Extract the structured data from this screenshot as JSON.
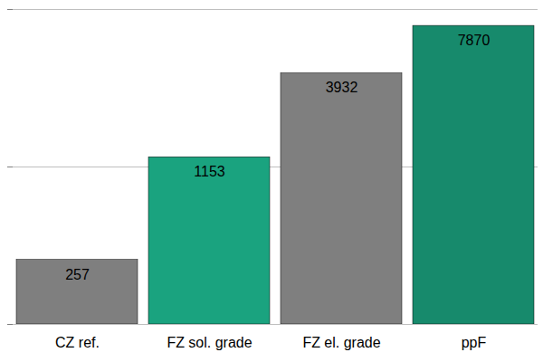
{
  "chart_data": {
    "type": "bar",
    "categories": [
      "CZ ref.",
      "FZ sol. grade",
      "FZ el. grade",
      "ppF"
    ],
    "values": [
      257,
      1153,
      3932,
      7870
    ],
    "colors": [
      "#7f7f7f",
      "#1aa37f",
      "#7f7f7f",
      "#178a6c"
    ],
    "log": "y",
    "ylim": [
      100,
      10000
    ],
    "yticks": [
      100,
      1000,
      10000
    ],
    "grid": true,
    "data_labels": true,
    "tick_labels": "x"
  }
}
